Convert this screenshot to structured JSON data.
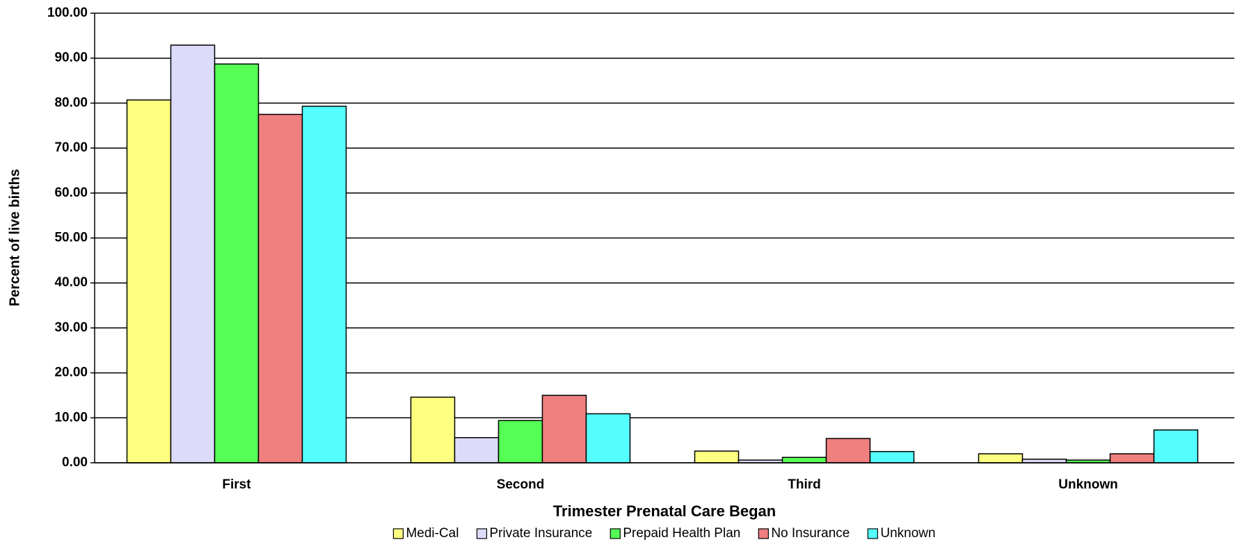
{
  "chart_data": {
    "type": "bar",
    "x_label": "Trimester Prenatal Care Began",
    "y_label": "Percent of live births",
    "categories": [
      "First",
      "Second",
      "Third",
      "Unknown"
    ],
    "series": [
      {
        "name": "Medi-Cal",
        "color": "#ffff80",
        "values": [
          80.7,
          14.6,
          2.6,
          2.0
        ]
      },
      {
        "name": "Private Insurance",
        "color": "#dcdcfa",
        "values": [
          92.9,
          5.6,
          0.6,
          0.8
        ]
      },
      {
        "name": "Prepaid Health Plan",
        "color": "#55ff55",
        "values": [
          88.7,
          9.4,
          1.2,
          0.6
        ]
      },
      {
        "name": "No Insurance",
        "color": "#f08080",
        "values": [
          77.5,
          15.0,
          5.4,
          2.0
        ]
      },
      {
        "name": "Unknown",
        "color": "#55ffff",
        "values": [
          79.3,
          10.9,
          2.5,
          7.3
        ]
      }
    ],
    "ylim": [
      0,
      100
    ],
    "yticks": [
      {
        "value": 0,
        "label": "0.00"
      },
      {
        "value": 10,
        "label": "10.00"
      },
      {
        "value": 20,
        "label": "20.00"
      },
      {
        "value": 30,
        "label": "30.00"
      },
      {
        "value": 40,
        "label": "40.00"
      },
      {
        "value": 50,
        "label": "50.00"
      },
      {
        "value": 60,
        "label": "60.00"
      },
      {
        "value": 70,
        "label": "70.00"
      },
      {
        "value": 80,
        "label": "80.00"
      },
      {
        "value": 90,
        "label": "90.00"
      },
      {
        "value": 100,
        "label": "100.00"
      }
    ],
    "grid": true,
    "legend": "bottom"
  }
}
